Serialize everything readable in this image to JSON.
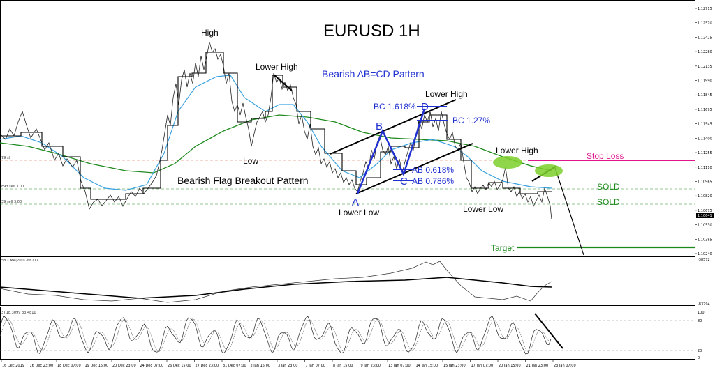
{
  "chart_data": {
    "type": "line",
    "title": "EURUSD 1H",
    "pattern_title": "Bearish AB=CD Pattern",
    "flag_title": "Bearish Flag Breakout Pattern",
    "y_ticks": [
      "1.12715",
      "1.12570",
      "1.12425",
      "1.12280",
      "1.12135",
      "1.11990",
      "1.11845",
      "1.11695",
      "1.11545",
      "1.11400",
      "1.11255",
      "1.11110",
      "1.10965",
      "1.10820",
      "1.10675",
      "1.10530",
      "1.10385",
      "1.10240"
    ],
    "current_price": "1.10641",
    "ylim": [
      1.1024,
      1.12715
    ],
    "x_labels": [
      "16 Dec 2019",
      "16 Dec 23:00",
      "18 Dec 07:00",
      "19 Dec 15:00",
      "20 Dec 23:00",
      "24 Dec 07:00",
      "26 Dec 15:00",
      "27 Dec 23:00",
      "31 Dec 07:00",
      "2 Jan 15:00",
      "3 Jan 23:00",
      "7 Jan 07:00",
      "8 Jan 15:00",
      "9 Jan 23:00",
      "13 Jan 07:00",
      "14 Jan 15:00",
      "15 Jan 23:00",
      "17 Jan 07:00",
      "20 Jan 15:00",
      "21 Jan 23:00",
      "23 Jan 07:00"
    ],
    "annotations": {
      "high": "High",
      "lower_high_1": "Lower High",
      "low": "Low",
      "lower_high_2": "Lower High",
      "lower_high_3": "Lower High",
      "lower_low_1": "Lower Low",
      "lower_low_2": "Lower Low",
      "point_a": "A",
      "point_b": "B",
      "point_c": "C",
      "point_d": "D",
      "bc_1618": "BC 1.618%",
      "bc_127": "BC 1.27%",
      "ab_0618": "AB 0.618%",
      "ab_0786": "AB 0.786%",
      "stop_loss": "Stop Loss",
      "sold_1": "SOLD",
      "sold_2": "SOLD",
      "target": "Target"
    },
    "order_levels": {
      "sell_1": "893 sell 3.00",
      "sell_2": "39 sell 3.00",
      "sl": "79 sl"
    },
    "indicator_1": {
      "label": "58 • MA(200) -66777",
      "top": "-38572",
      "bottom": "-83794"
    },
    "indicator_2": {
      "label": "3) 18.3099 33.4810",
      "levels": [
        "100",
        "80",
        "20",
        "0"
      ]
    },
    "colors": {
      "price": "#000000",
      "ma_fast": "#3ba3e0",
      "ma_slow": "#1f8a1f",
      "pattern": "#2030d0",
      "stop_loss": "#e0158c",
      "target": "#1b8a1b",
      "ellipse": "#7ccf2a"
    }
  }
}
